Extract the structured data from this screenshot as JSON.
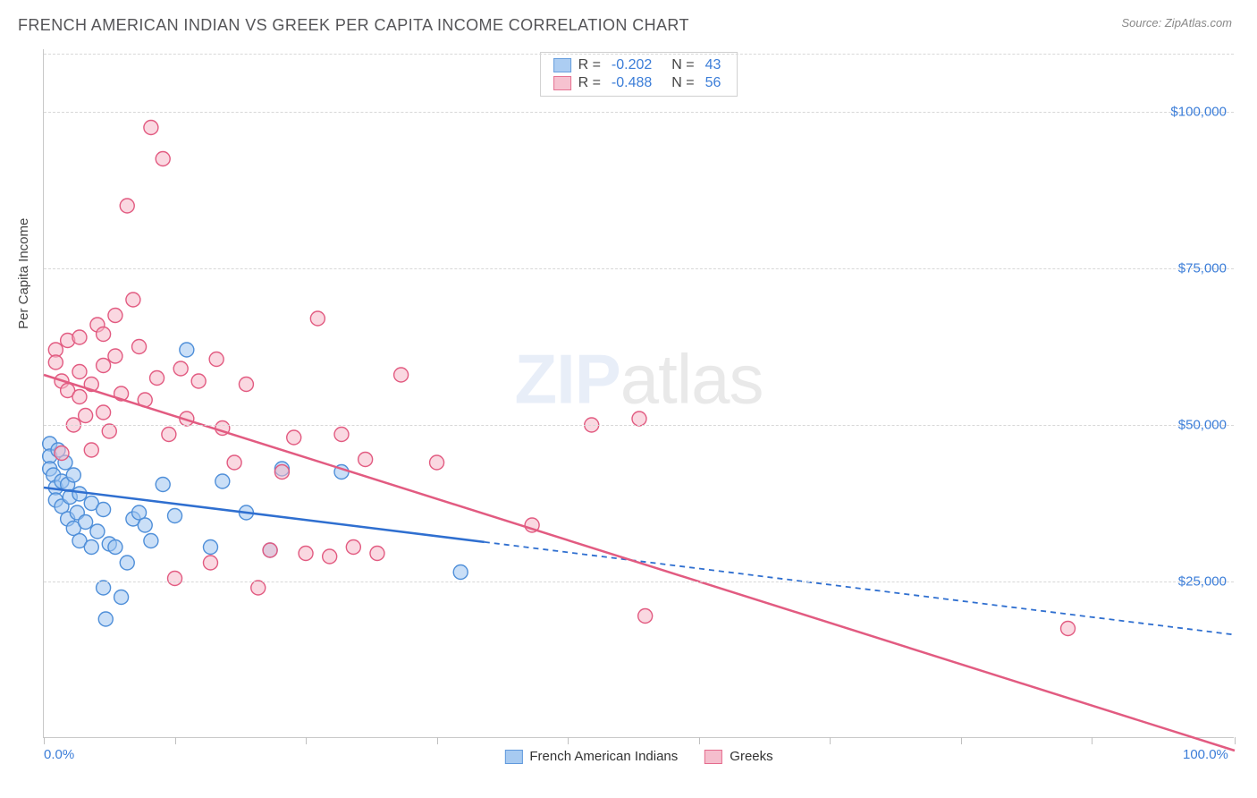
{
  "header": {
    "title": "FRENCH AMERICAN INDIAN VS GREEK PER CAPITA INCOME CORRELATION CHART",
    "source": "Source: ZipAtlas.com"
  },
  "chart": {
    "type": "scatter",
    "y_axis_title": "Per Capita Income",
    "xlim": [
      0,
      100
    ],
    "ylim": [
      0,
      110000
    ],
    "x_ticks_percent": [
      0,
      11,
      22,
      33,
      44,
      55,
      66,
      77,
      88,
      100
    ],
    "x_tick_labels": {
      "0": "0.0%",
      "100": "100.0%"
    },
    "y_gridlines": [
      25000,
      50000,
      75000,
      100000
    ],
    "y_tick_labels": [
      "$25,000",
      "$50,000",
      "$75,000",
      "$100,000"
    ],
    "background_color": "#ffffff",
    "grid_color": "#d8d8d8",
    "axis_color": "#c8c8c8",
    "tick_label_color": "#3b7dd8",
    "marker_radius": 8,
    "marker_stroke_width": 1.4,
    "series": [
      {
        "name": "French American Indians",
        "fill": "#9ec5f0",
        "stroke": "#4f8fd9",
        "fill_opacity": 0.55,
        "line_color": "#2f6fd0",
        "r": -0.202,
        "n": 43,
        "trend": {
          "x1": 0,
          "y1": 40000,
          "x2": 100,
          "y2": 16500,
          "solid_until_x": 37,
          "dash": "6,5"
        },
        "points": [
          [
            0.5,
            47000
          ],
          [
            0.5,
            45000
          ],
          [
            0.5,
            43000
          ],
          [
            0.8,
            42000
          ],
          [
            1,
            40000
          ],
          [
            1,
            38000
          ],
          [
            1.2,
            46000
          ],
          [
            1.5,
            41000
          ],
          [
            1.5,
            37000
          ],
          [
            1.8,
            44000
          ],
          [
            2,
            40500
          ],
          [
            2,
            35000
          ],
          [
            2.2,
            38500
          ],
          [
            2.5,
            42000
          ],
          [
            2.5,
            33500
          ],
          [
            2.8,
            36000
          ],
          [
            3,
            39000
          ],
          [
            3,
            31500
          ],
          [
            3.5,
            34500
          ],
          [
            4,
            30500
          ],
          [
            4,
            37500
          ],
          [
            4.5,
            33000
          ],
          [
            5,
            24000
          ],
          [
            5,
            36500
          ],
          [
            5.2,
            19000
          ],
          [
            5.5,
            31000
          ],
          [
            6,
            30500
          ],
          [
            6.5,
            22500
          ],
          [
            7,
            28000
          ],
          [
            7.5,
            35000
          ],
          [
            8,
            36000
          ],
          [
            8.5,
            34000
          ],
          [
            9,
            31500
          ],
          [
            10,
            40500
          ],
          [
            11,
            35500
          ],
          [
            12,
            62000
          ],
          [
            14,
            30500
          ],
          [
            15,
            41000
          ],
          [
            17,
            36000
          ],
          [
            19,
            30000
          ],
          [
            20,
            43000
          ],
          [
            25,
            42500
          ],
          [
            35,
            26500
          ]
        ]
      },
      {
        "name": "Greeks",
        "fill": "#f5b8c8",
        "stroke": "#e25b81",
        "fill_opacity": 0.55,
        "line_color": "#e25b81",
        "r": -0.488,
        "n": 56,
        "trend": {
          "x1": 0,
          "y1": 58000,
          "x2": 100,
          "y2": -2000,
          "solid_until_x": 100,
          "dash": null
        },
        "points": [
          [
            1,
            62000
          ],
          [
            1,
            60000
          ],
          [
            1.5,
            57000
          ],
          [
            1.5,
            45500
          ],
          [
            2,
            63500
          ],
          [
            2,
            55500
          ],
          [
            2.5,
            50000
          ],
          [
            3,
            64000
          ],
          [
            3,
            58500
          ],
          [
            3,
            54500
          ],
          [
            3.5,
            51500
          ],
          [
            4,
            46000
          ],
          [
            4,
            56500
          ],
          [
            4.5,
            66000
          ],
          [
            5,
            59500
          ],
          [
            5,
            52000
          ],
          [
            5,
            64500
          ],
          [
            5.5,
            49000
          ],
          [
            6,
            67500
          ],
          [
            6,
            61000
          ],
          [
            6.5,
            55000
          ],
          [
            7,
            85000
          ],
          [
            7.5,
            70000
          ],
          [
            8,
            62500
          ],
          [
            8.5,
            54000
          ],
          [
            9,
            97500
          ],
          [
            9.5,
            57500
          ],
          [
            10,
            92500
          ],
          [
            10.5,
            48500
          ],
          [
            11,
            25500
          ],
          [
            11.5,
            59000
          ],
          [
            12,
            51000
          ],
          [
            13,
            57000
          ],
          [
            14,
            28000
          ],
          [
            14.5,
            60500
          ],
          [
            15,
            49500
          ],
          [
            16,
            44000
          ],
          [
            17,
            56500
          ],
          [
            18,
            24000
          ],
          [
            19,
            30000
          ],
          [
            20,
            42500
          ],
          [
            21,
            48000
          ],
          [
            22,
            29500
          ],
          [
            23,
            67000
          ],
          [
            24,
            29000
          ],
          [
            25,
            48500
          ],
          [
            26,
            30500
          ],
          [
            27,
            44500
          ],
          [
            28,
            29500
          ],
          [
            30,
            58000
          ],
          [
            33,
            44000
          ],
          [
            41,
            34000
          ],
          [
            46,
            50000
          ],
          [
            50,
            51000
          ],
          [
            50.5,
            19500
          ],
          [
            86,
            17500
          ]
        ]
      }
    ],
    "legend_top_labels": {
      "r": "R =",
      "n": "N ="
    },
    "legend_bottom": [
      "French American Indians",
      "Greeks"
    ],
    "watermark": {
      "part1": "ZIP",
      "part2": "atlas"
    }
  }
}
